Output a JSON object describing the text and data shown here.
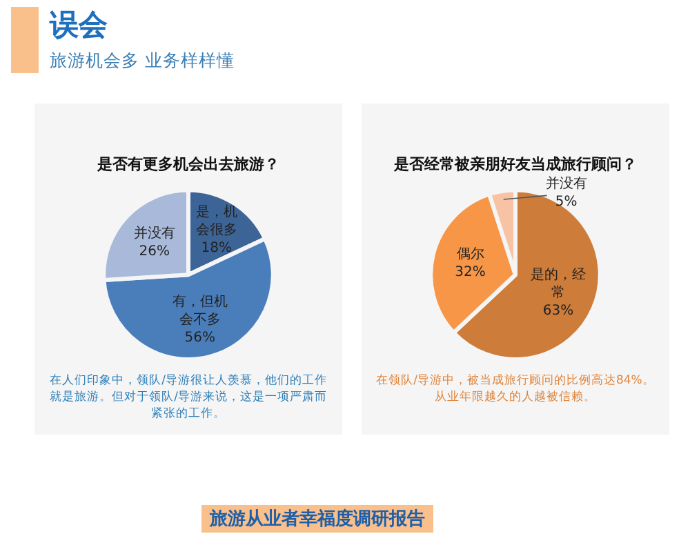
{
  "chart_data": [
    {
      "type": "other",
      "title": "误会",
      "subtitle": "旅游机会多 业务样样懂",
      "annotations": [
        "旅游从业者幸福度调研报告"
      ]
    },
    {
      "type": "pie",
      "title": "是否有更多机会出去旅游？",
      "categories": [
        "是，机会很多",
        "有，但机会不多",
        "并没有"
      ],
      "values": [
        18,
        56,
        26
      ],
      "value_labels": [
        "18%",
        "56%",
        "26%"
      ],
      "colors": [
        "#3d6497",
        "#4a7ebb",
        "#a9b9d9"
      ],
      "legend": false,
      "annotations": [
        "在人们印象中，领队/导游很让人羡慕，他们的工作就是旅游。但对于领队/导游来说，这是一项严肃而紧张的工作。"
      ]
    },
    {
      "type": "pie",
      "title": "是否经常被亲朋好友当成旅行顾问？",
      "categories": [
        "是的，经常",
        "偶尔",
        "并没有"
      ],
      "values": [
        63,
        32,
        5
      ],
      "value_labels": [
        "63%",
        "32%",
        "5%"
      ],
      "colors": [
        "#cd7c3a",
        "#f79646",
        "#f8c3a5"
      ],
      "legend": false,
      "annotations": [
        "在领队/导游中，被当成旅行顾问的比例高达84%。从业年限越久的人越被信赖。"
      ]
    }
  ]
}
